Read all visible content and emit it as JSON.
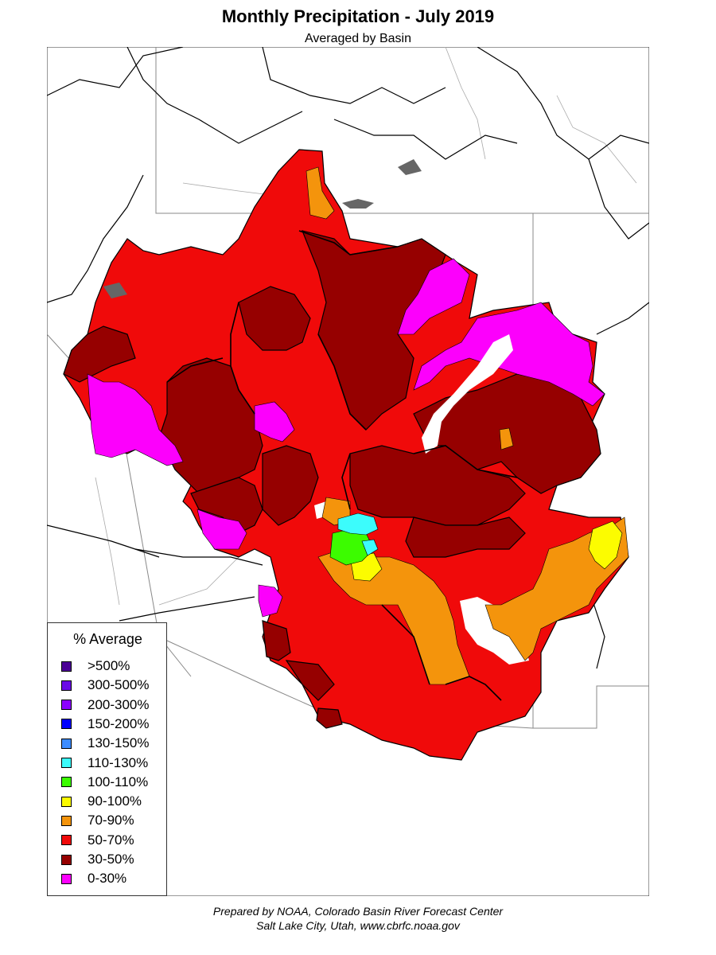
{
  "title": "Monthly Precipitation - July 2019",
  "subtitle": "Averaged by Basin",
  "legend": {
    "title": "% Average",
    "items": [
      {
        "label": ">500%",
        "color": "#4b0096"
      },
      {
        "label": "300-500%",
        "color": "#6a0ae6"
      },
      {
        "label": "200-300%",
        "color": "#8c00ff"
      },
      {
        "label": "150-200%",
        "color": "#0000ff"
      },
      {
        "label": "130-150%",
        "color": "#3c8cff"
      },
      {
        "label": "110-130%",
        "color": "#3cfcfc"
      },
      {
        "label": "100-110%",
        "color": "#3cfc00"
      },
      {
        "label": "90-100%",
        "color": "#fcfc00"
      },
      {
        "label": "70-90%",
        "color": "#f4940c"
      },
      {
        "label": "50-70%",
        "color": "#f00a0a"
      },
      {
        "label": "30-50%",
        "color": "#960000"
      },
      {
        "label": "0-30%",
        "color": "#fc00fc"
      }
    ]
  },
  "credits": {
    "line1": "Prepared by NOAA, Colorado Basin River Forecast Center",
    "line2": "Salt Lake City, Utah, www.cbrfc.noaa.gov"
  }
}
